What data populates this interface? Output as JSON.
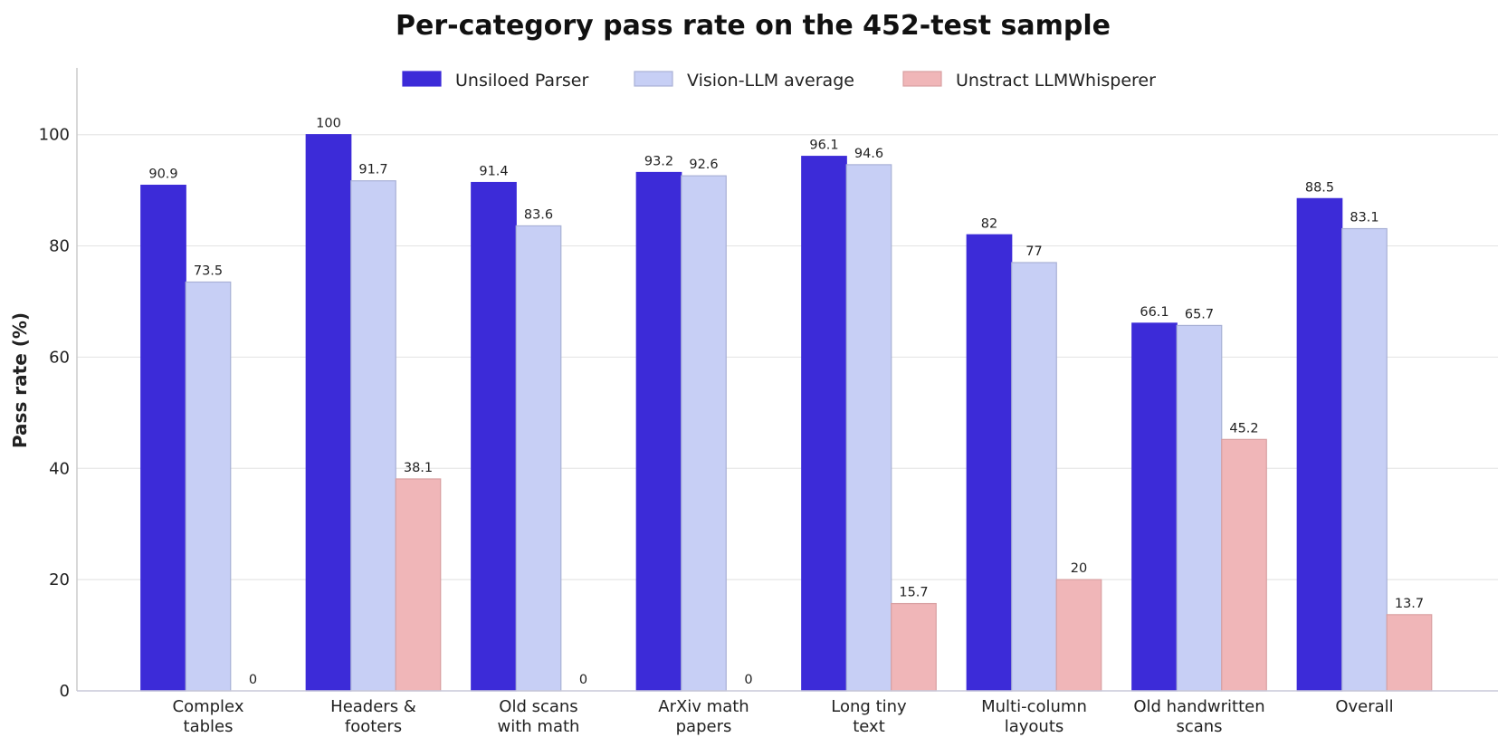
{
  "chart_data": {
    "type": "bar",
    "title": "Per-category pass rate on the 452-test sample",
    "xlabel": "",
    "ylabel": "Pass rate (%)",
    "ylim": [
      0,
      112
    ],
    "yticks": [
      0,
      20,
      40,
      60,
      80,
      100
    ],
    "grid": "horizontal",
    "legend_position": "top-center",
    "categories": [
      [
        "Complex",
        "tables"
      ],
      [
        "Headers &",
        "footers"
      ],
      [
        "Old scans",
        "with math"
      ],
      [
        "ArXiv math",
        "papers"
      ],
      [
        "Long tiny",
        "text"
      ],
      [
        "Multi-column",
        "layouts"
      ],
      [
        "Old handwritten",
        "scans"
      ],
      [
        "Overall"
      ]
    ],
    "series": [
      {
        "name": "Unsiloed Parser",
        "color": "#3c2bd8",
        "edge": "#3c2bd8",
        "values": [
          90.9,
          100,
          91.4,
          93.2,
          96.1,
          82,
          66.1,
          88.5
        ]
      },
      {
        "name": "Vision-LLM average",
        "color": "#c7cff5",
        "edge": "#a9b1d6",
        "values": [
          73.5,
          91.7,
          83.6,
          92.6,
          94.6,
          77,
          65.7,
          83.1
        ]
      },
      {
        "name": "Unstract LLMWhisperer",
        "color": "#f0b6b8",
        "edge": "#d9a0a2",
        "values": [
          0,
          38.1,
          0,
          0,
          15.7,
          20,
          45.2,
          13.7
        ]
      }
    ]
  }
}
